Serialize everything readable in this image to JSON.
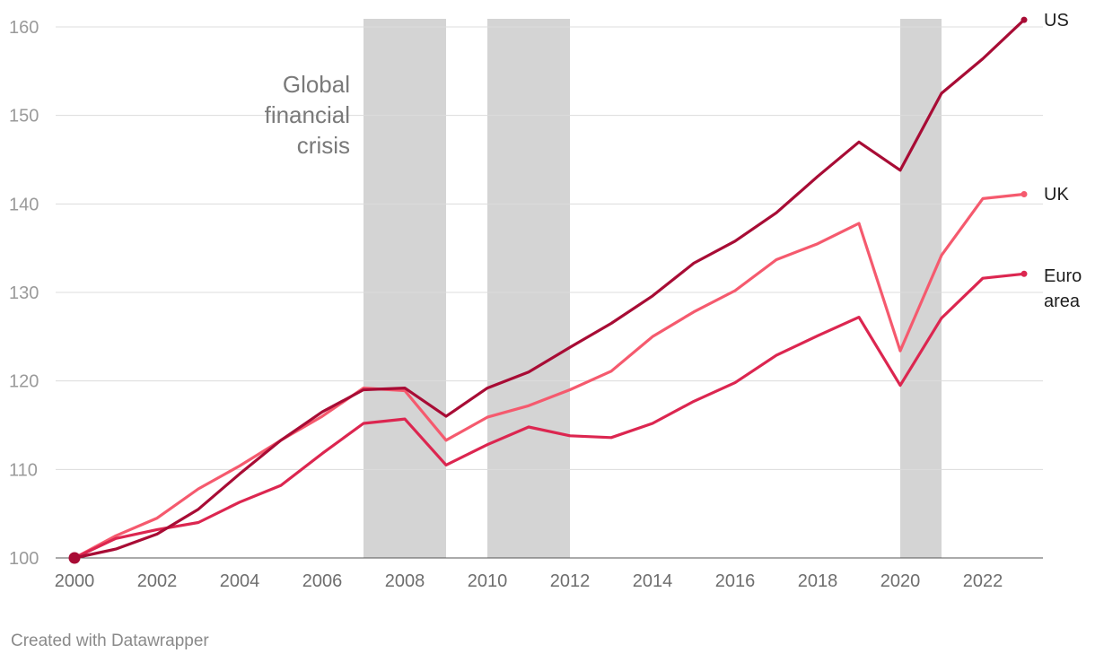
{
  "chart_data": {
    "type": "line",
    "title": "",
    "xlabel": "",
    "ylabel": "",
    "ylim": [
      100,
      160
    ],
    "y_ticks": [
      100,
      110,
      120,
      130,
      140,
      150,
      160
    ],
    "x_ticks": [
      2000,
      2002,
      2004,
      2006,
      2008,
      2010,
      2012,
      2014,
      2016,
      2018,
      2020,
      2022
    ],
    "x": [
      2000,
      2001,
      2002,
      2003,
      2004,
      2005,
      2006,
      2007,
      2008,
      2009,
      2010,
      2011,
      2012,
      2013,
      2014,
      2015,
      2016,
      2017,
      2018,
      2019,
      2020,
      2021,
      2022,
      2023
    ],
    "shaded_periods": [
      {
        "start": 2007,
        "end": 2009
      },
      {
        "start": 2010,
        "end": 2012
      },
      {
        "start": 2020,
        "end": 2021
      }
    ],
    "annotation": {
      "lines": [
        "Global",
        "financial",
        "crisis"
      ]
    },
    "series": [
      {
        "name": "US",
        "label_lines": [
          "US"
        ],
        "color": "#a80c35",
        "values": [
          100,
          101,
          102.7,
          105.5,
          109.5,
          113.3,
          116.5,
          119,
          119.2,
          116,
          119.2,
          121,
          123.8,
          126.5,
          129.6,
          133.3,
          135.8,
          139,
          143.1,
          147,
          143.8,
          152.5,
          156.4,
          160.8
        ]
      },
      {
        "name": "UK",
        "label_lines": [
          "UK"
        ],
        "color": "#f55a6e",
        "values": [
          100,
          102.5,
          104.5,
          107.8,
          110.4,
          113.3,
          116,
          119.2,
          118.9,
          113.3,
          115.9,
          117.2,
          119,
          121.1,
          125,
          127.8,
          130.2,
          133.7,
          135.5,
          137.8,
          123.4,
          134.2,
          140.6,
          141.1
        ]
      },
      {
        "name": "Euro area",
        "label_lines": [
          "Euro",
          "area"
        ],
        "color": "#dc2650",
        "values": [
          100,
          102.2,
          103.2,
          104,
          106.3,
          108.2,
          111.8,
          115.2,
          115.7,
          110.5,
          112.8,
          114.8,
          113.8,
          113.6,
          115.2,
          117.7,
          119.8,
          122.9,
          125.1,
          127.2,
          119.5,
          127.1,
          131.6,
          132.1
        ]
      }
    ],
    "start_marker_color": "#a80c35"
  },
  "footer": {
    "credit": "Created with Datawrapper"
  }
}
